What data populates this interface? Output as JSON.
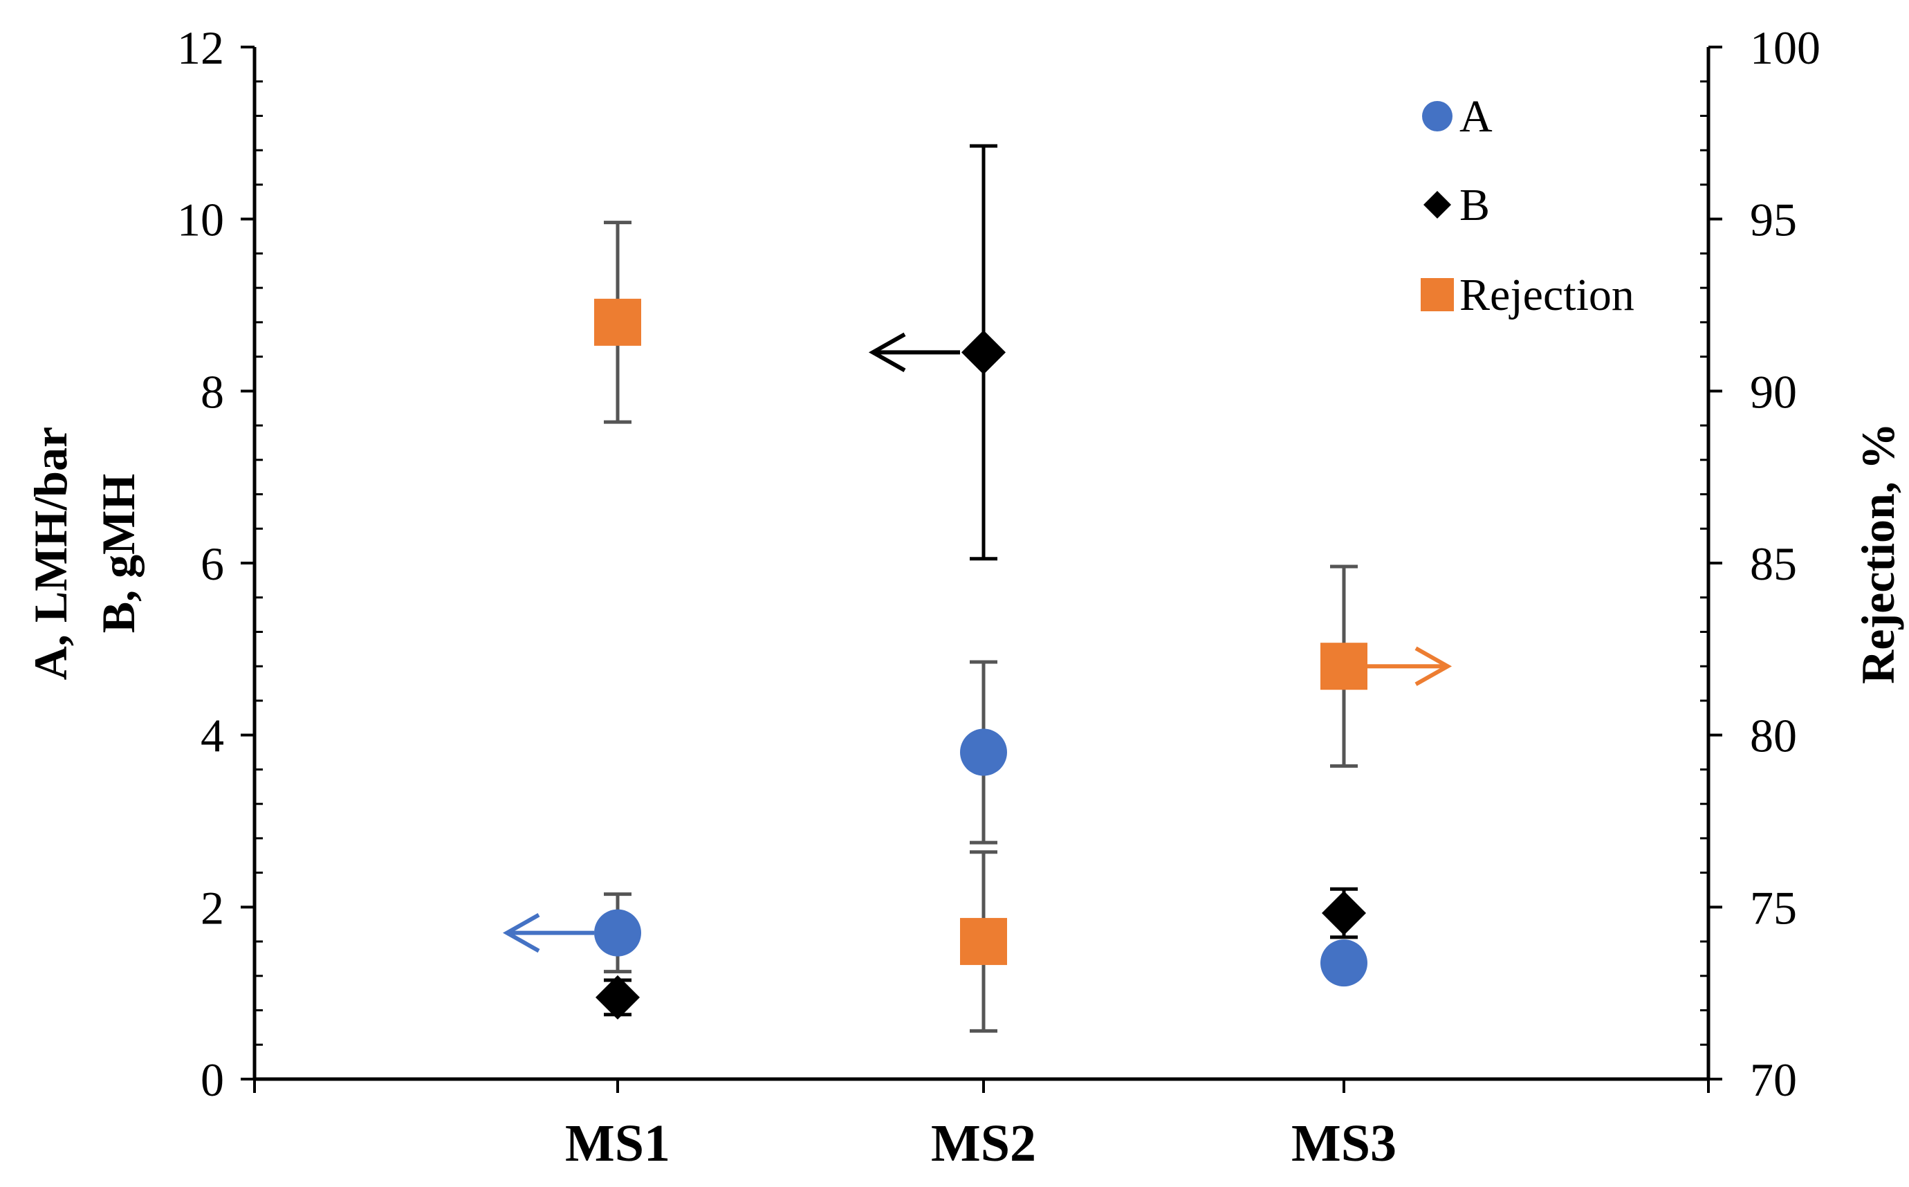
{
  "chart_data": {
    "type": "scatter",
    "categories": [
      "MS1",
      "MS2",
      "MS3"
    ],
    "left_axis": {
      "title_lines": [
        "A, LMH/bar",
        "B, gMH"
      ],
      "ylim": [
        0,
        12
      ],
      "ticks": [
        0,
        2,
        4,
        6,
        8,
        10,
        12
      ]
    },
    "right_axis": {
      "title": "Rejection, %",
      "ylim": [
        70,
        100
      ],
      "ticks": [
        70,
        75,
        80,
        85,
        90,
        95,
        100
      ]
    },
    "series": [
      {
        "name": "A",
        "axis": "left",
        "marker": "circle",
        "color": "#4472C4",
        "values": [
          1.7,
          3.8,
          1.35
        ],
        "errors": [
          0.45,
          1.05,
          0.0
        ],
        "axis_arrow": {
          "at_category": "MS1",
          "direction": "left"
        }
      },
      {
        "name": "B",
        "axis": "left",
        "marker": "diamond",
        "color": "#000000",
        "values": [
          0.95,
          8.45,
          1.93
        ],
        "errors": [
          0.2,
          2.4,
          0.28
        ],
        "axis_arrow": {
          "at_category": "MS2",
          "direction": "left"
        }
      },
      {
        "name": "Rejection",
        "axis": "right",
        "marker": "square",
        "color": "#ED7D31",
        "values": [
          92.0,
          74.0,
          82.0
        ],
        "errors": [
          2.9,
          2.6,
          2.9
        ],
        "axis_arrow": {
          "at_category": "MS3",
          "direction": "right"
        }
      }
    ],
    "legend_position": "top-right"
  }
}
